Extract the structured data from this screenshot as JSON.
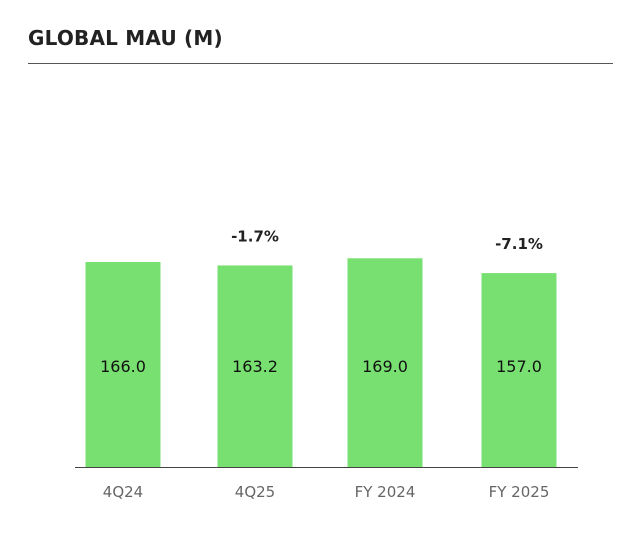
{
  "chart_data": {
    "type": "bar",
    "title": "GLOBAL MAU (M)",
    "categories": [
      "4Q24",
      "4Q25",
      "FY 2024",
      "FY 2025"
    ],
    "values": [
      166.0,
      163.2,
      169.0,
      157.0
    ],
    "value_labels": [
      "166.0",
      "163.2",
      "169.0",
      "157.0"
    ],
    "change_labels": [
      "",
      "-1.7%",
      "",
      "-7.1%"
    ],
    "xlabel": "",
    "ylabel": "",
    "ylim": [
      0,
      200
    ],
    "grid": false,
    "bar_color": "#77e070"
  }
}
